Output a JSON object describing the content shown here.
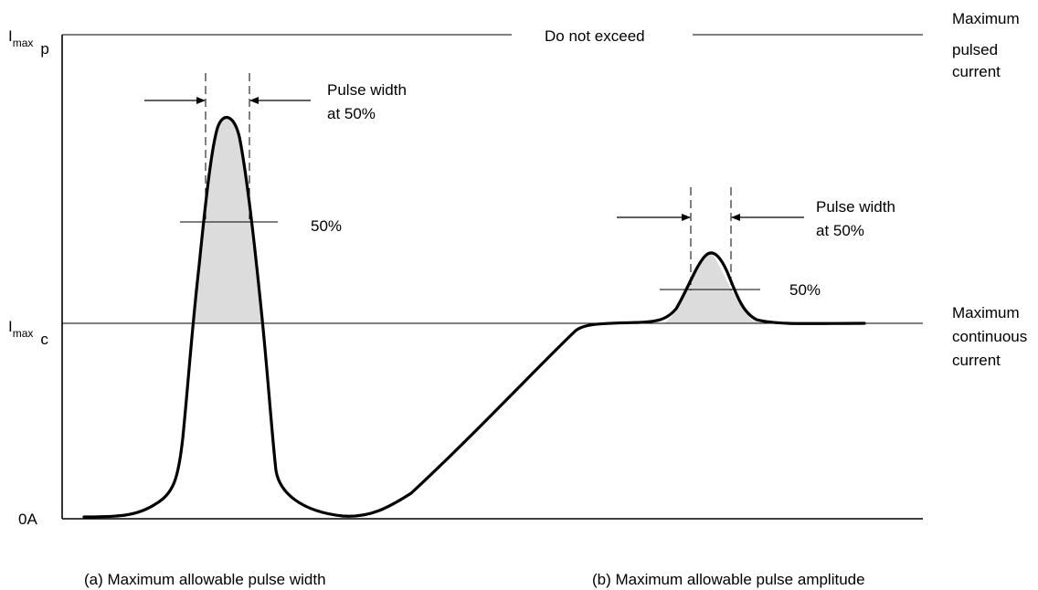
{
  "y_axis": {
    "imax_p": {
      "main": "I",
      "sub": "max",
      "suffix": "p"
    },
    "imax_c": {
      "main": "I",
      "sub": "max",
      "suffix": "c"
    },
    "zero": "0A"
  },
  "top_line_label": "Do not exceed",
  "right_labels": {
    "max_pulsed": [
      "Maximum",
      "pulsed",
      "current"
    ],
    "max_continuous": [
      "Maximum",
      "continuous",
      "current"
    ]
  },
  "pulse_a": {
    "width_label": [
      "Pulse width",
      "at 50%"
    ],
    "level_label": "50%"
  },
  "pulse_b": {
    "width_label": [
      "Pulse width",
      "at 50%"
    ],
    "level_label": "50%"
  },
  "captions": {
    "a": "(a) Maximum allowable pulse width",
    "b": "(b) Maximum allowable pulse amplitude"
  }
}
